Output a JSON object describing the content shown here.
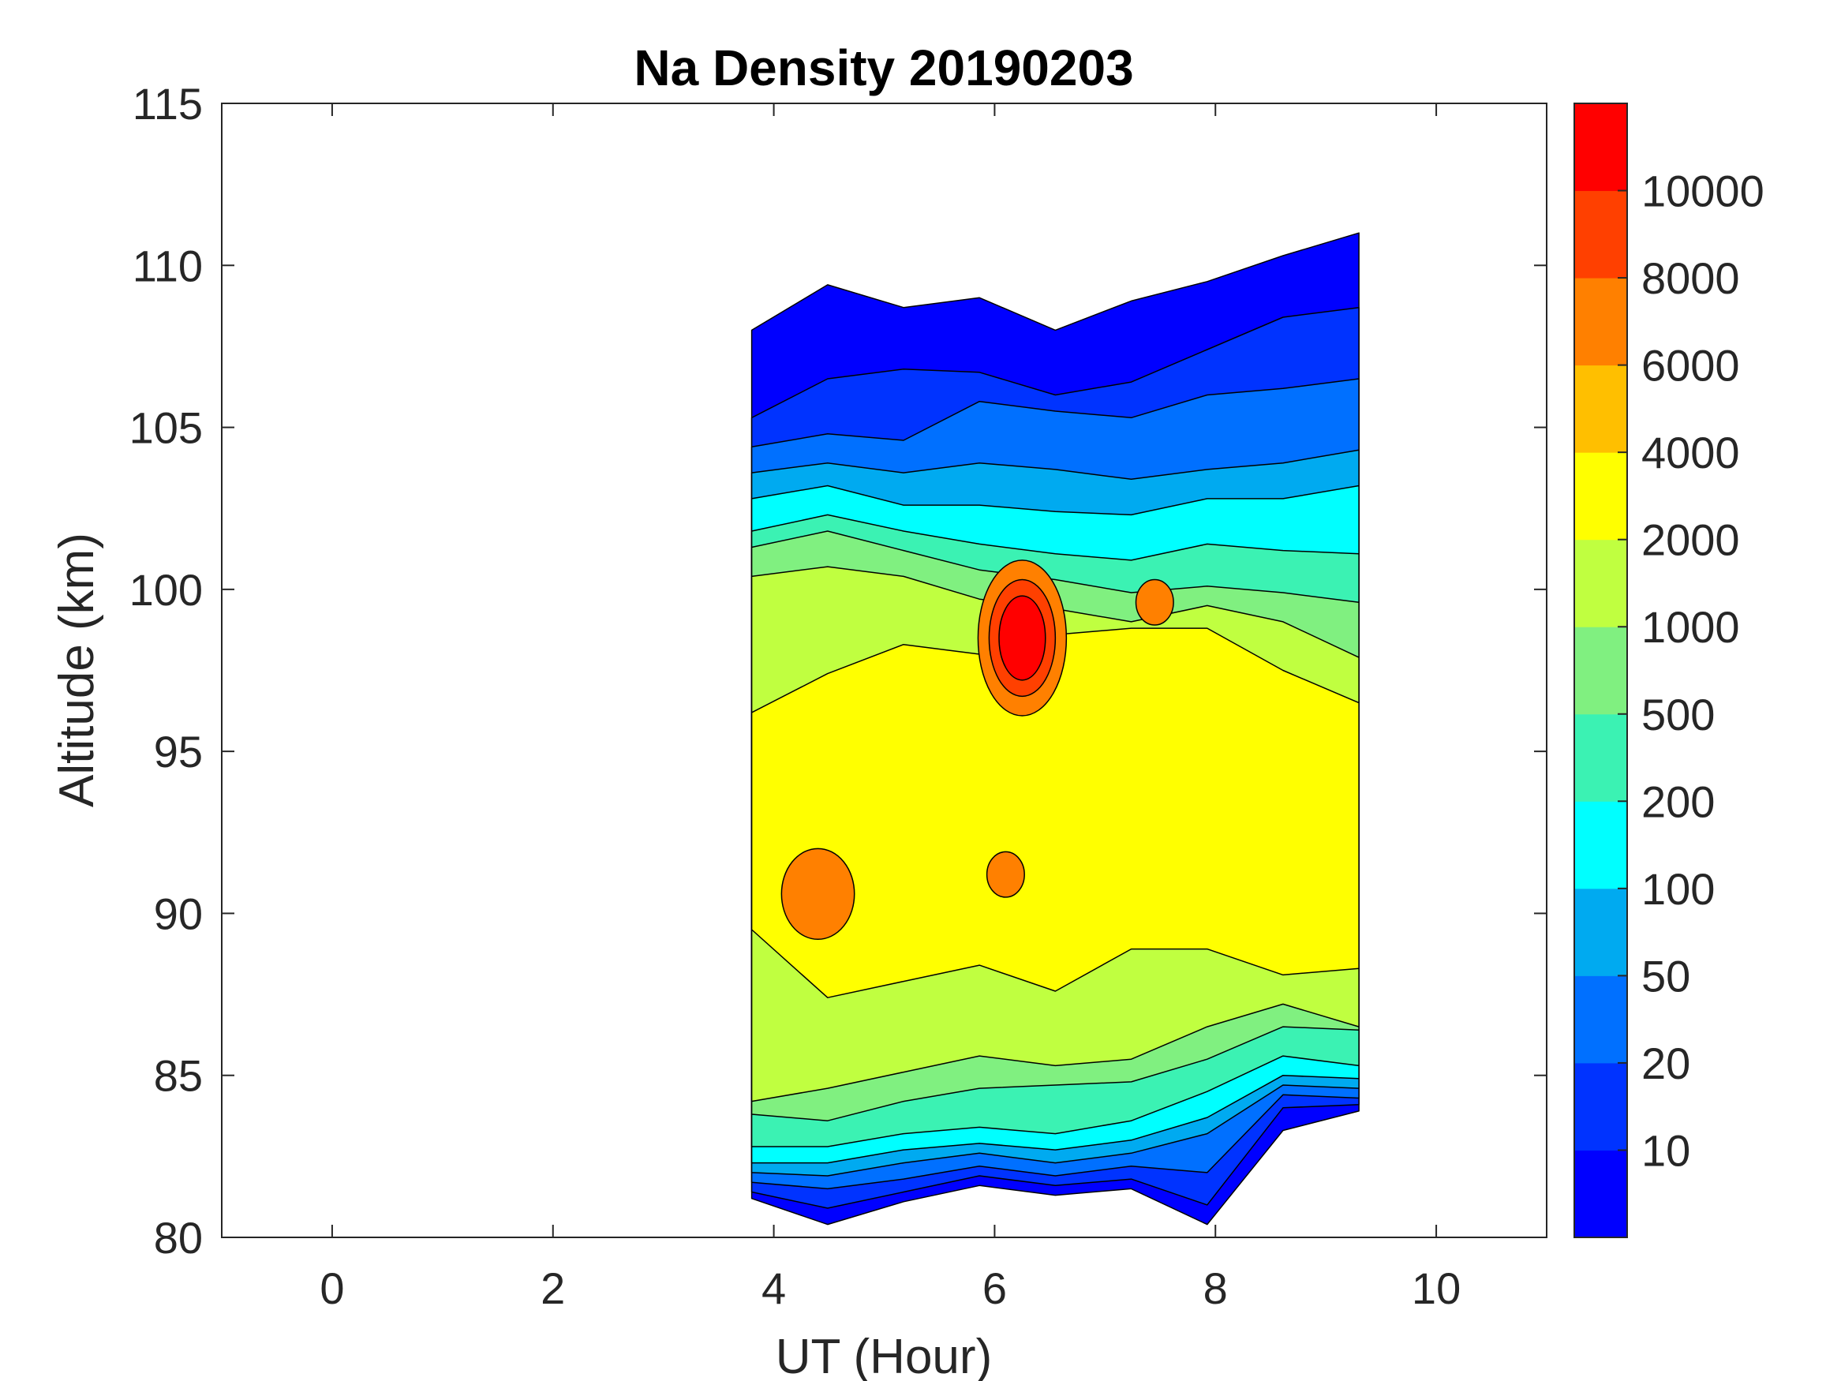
{
  "chart_data": {
    "type": "contourf",
    "title": "Na Density 20190203",
    "xlabel": "UT (Hour)",
    "ylabel": "Altitude (km)",
    "xlim": [
      -1,
      11
    ],
    "ylim": [
      80,
      115
    ],
    "xticks": [
      0,
      2,
      4,
      6,
      8,
      10
    ],
    "yticks": [
      80,
      85,
      90,
      95,
      100,
      105,
      110,
      115
    ],
    "data_time_range": [
      3.8,
      9.3
    ],
    "colorbar": {
      "tick_labels": [
        "10",
        "20",
        "50",
        "100",
        "200",
        "500",
        "1000",
        "2000",
        "4000",
        "6000",
        "8000",
        "10000"
      ],
      "colors": [
        "#0000ff",
        "#0033ff",
        "#0070ff",
        "#00aaf0",
        "#00ffff",
        "#3bf2b3",
        "#80f080",
        "#c0ff40",
        "#ffff00",
        "#ffbf00",
        "#ff8000",
        "#ff4000",
        "#ff0000"
      ]
    },
    "features": [
      {
        "label": "peak",
        "ut": 6.25,
        "altitude_km": 98.5,
        "density_level": "10000+"
      },
      {
        "label": "high-density blob",
        "ut": 4.4,
        "altitude_km": 90.6,
        "density_level": "6000-8000"
      },
      {
        "label": "high-density blob",
        "ut": 7.45,
        "altitude_km": 99.6,
        "density_level": "6000-8000"
      },
      {
        "label": "high-density blob",
        "ut": 6.1,
        "altitude_km": 91.2,
        "density_level": "6000-8000"
      }
    ],
    "layer_boundaries_km": [
      {
        "level": "10",
        "top": [
          108.0,
          109.4,
          108.7,
          109.0,
          108.0,
          108.9,
          109.5,
          110.3,
          111.0
        ],
        "bottom": [
          81.2,
          80.4,
          81.1,
          81.6,
          81.3,
          81.5,
          80.4,
          83.3,
          83.9
        ]
      },
      {
        "level": "20",
        "top": [
          105.3,
          106.5,
          106.8,
          106.7,
          106.0,
          106.4,
          107.4,
          108.4,
          108.7
        ],
        "bottom": [
          81.4,
          80.9,
          81.4,
          81.9,
          81.6,
          81.8,
          81.0,
          84.0,
          84.1
        ]
      },
      {
        "level": "50",
        "top": [
          104.4,
          104.8,
          104.6,
          105.8,
          105.5,
          105.3,
          106.0,
          106.2,
          106.5
        ],
        "bottom": [
          81.7,
          81.5,
          81.8,
          82.2,
          81.9,
          82.2,
          82.0,
          84.4,
          84.3
        ]
      },
      {
        "level": "100",
        "top": [
          103.6,
          103.9,
          103.6,
          103.9,
          103.7,
          103.4,
          103.7,
          103.9,
          104.3
        ],
        "bottom": [
          82.0,
          81.9,
          82.3,
          82.6,
          82.3,
          82.6,
          83.2,
          84.7,
          84.6
        ]
      },
      {
        "level": "200",
        "top": [
          102.8,
          103.2,
          102.6,
          102.6,
          102.4,
          102.3,
          102.8,
          102.8,
          103.2
        ],
        "bottom": [
          82.3,
          82.3,
          82.7,
          82.9,
          82.7,
          83.0,
          83.7,
          85.0,
          84.9
        ]
      },
      {
        "level": "500",
        "top": [
          101.8,
          102.3,
          101.8,
          101.4,
          101.1,
          100.9,
          101.4,
          101.2,
          101.1
        ],
        "bottom": [
          82.8,
          82.8,
          83.2,
          83.4,
          83.2,
          83.6,
          84.5,
          85.6,
          85.3
        ]
      },
      {
        "level": "1000",
        "top": [
          101.3,
          101.8,
          101.2,
          100.6,
          100.3,
          99.9,
          100.1,
          99.9,
          99.6
        ],
        "bottom": [
          83.8,
          83.6,
          84.2,
          84.6,
          84.7,
          84.8,
          85.5,
          86.5,
          86.4
        ]
      },
      {
        "level": "2000",
        "top": [
          100.4,
          100.7,
          100.4,
          99.7,
          99.4,
          99.0,
          99.5,
          99.0,
          97.9
        ],
        "bottom": [
          84.2,
          84.6,
          85.1,
          85.6,
          85.3,
          85.5,
          86.5,
          87.2,
          86.5
        ]
      },
      {
        "level": "4000",
        "top": [
          96.2,
          97.4,
          98.3,
          98.0,
          98.6,
          98.8,
          98.8,
          97.5,
          96.5
        ],
        "bottom": [
          89.5,
          87.4,
          87.9,
          88.4,
          87.6,
          88.9,
          88.9,
          88.1,
          88.3
        ]
      }
    ]
  }
}
